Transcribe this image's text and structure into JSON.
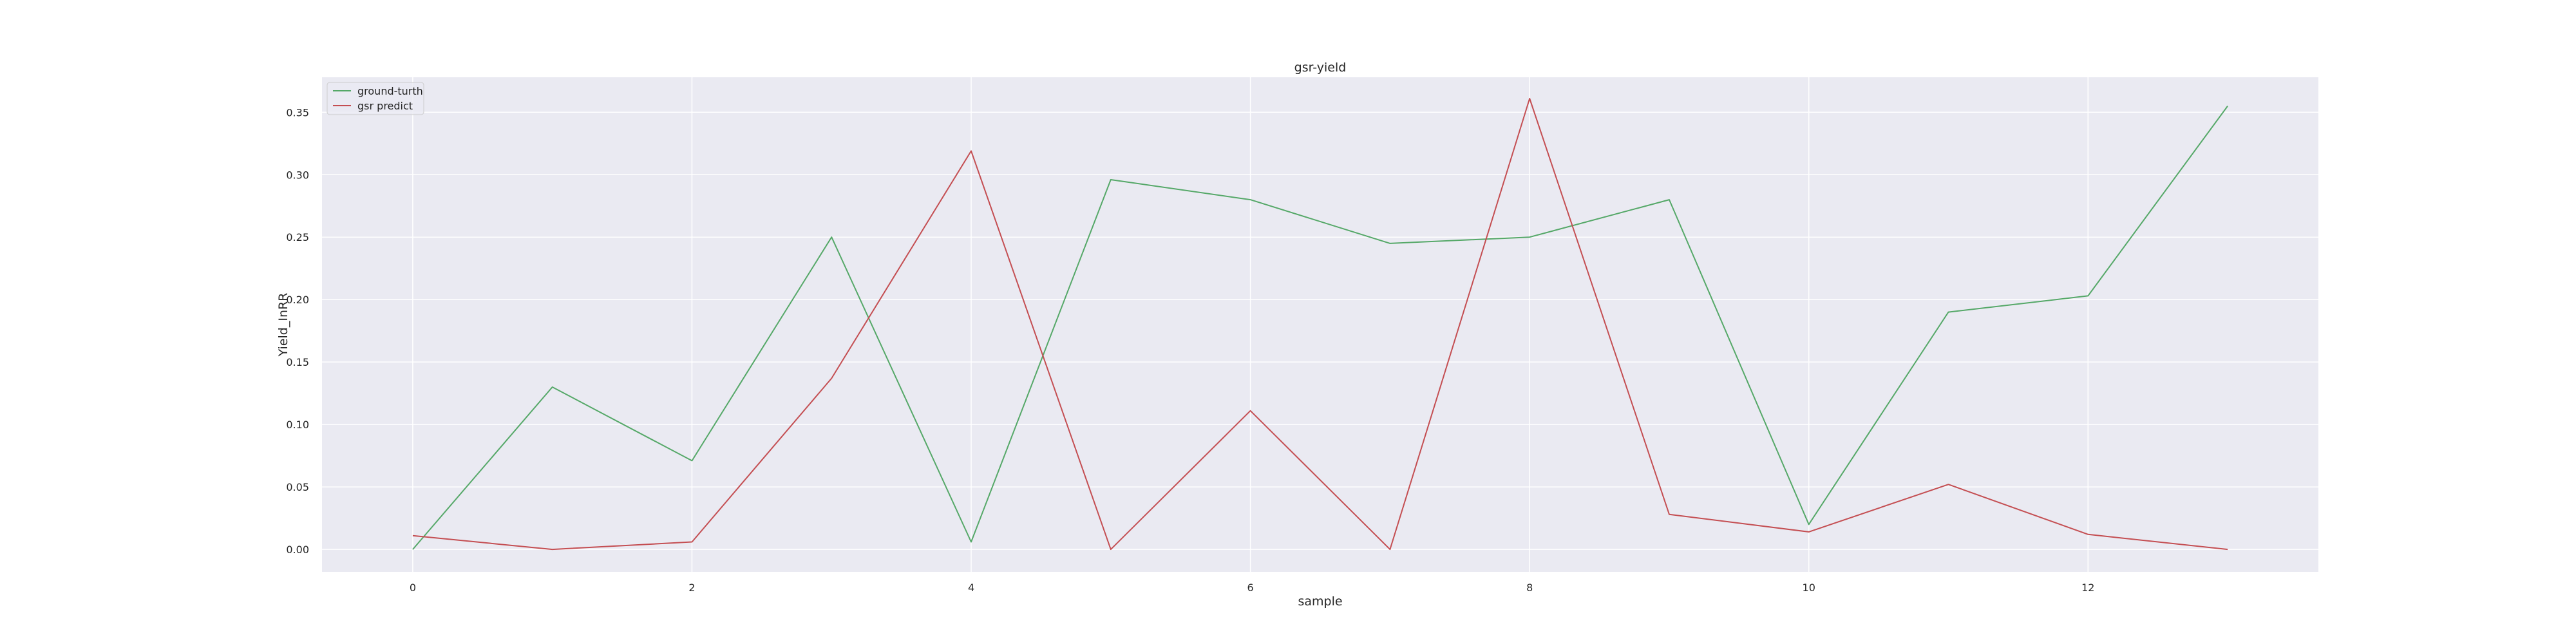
{
  "chart_data": {
    "type": "line",
    "title": "gsr-yield",
    "xlabel": "sample",
    "ylabel": "Yield_InRR",
    "x": [
      0,
      1,
      2,
      3,
      4,
      5,
      6,
      7,
      8,
      9,
      10,
      11,
      12,
      13
    ],
    "xticks": [
      "0",
      "2",
      "4",
      "6",
      "8",
      "10",
      "12"
    ],
    "xtick_values": [
      0,
      2,
      4,
      6,
      8,
      10,
      12
    ],
    "yticks": [
      "0.00",
      "0.05",
      "0.10",
      "0.15",
      "0.20",
      "0.25",
      "0.30",
      "0.35"
    ],
    "ytick_values": [
      0.0,
      0.05,
      0.1,
      0.15,
      0.2,
      0.25,
      0.3,
      0.35
    ],
    "xlim": [
      -0.65,
      13.65
    ],
    "ylim": [
      -0.018,
      0.378
    ],
    "grid": true,
    "legend_position": "top-left",
    "series": [
      {
        "name": "ground-turth",
        "color": "#55a868",
        "values": [
          0.0,
          0.13,
          0.071,
          0.25,
          0.006,
          0.296,
          0.28,
          0.245,
          0.25,
          0.28,
          0.02,
          0.19,
          0.203,
          0.355
        ]
      },
      {
        "name": "gsr predict",
        "color": "#c44e52",
        "values": [
          0.011,
          0.0,
          0.006,
          0.137,
          0.319,
          0.0,
          0.111,
          0.0,
          0.361,
          0.028,
          0.014,
          0.052,
          0.012,
          0.0
        ]
      }
    ]
  }
}
